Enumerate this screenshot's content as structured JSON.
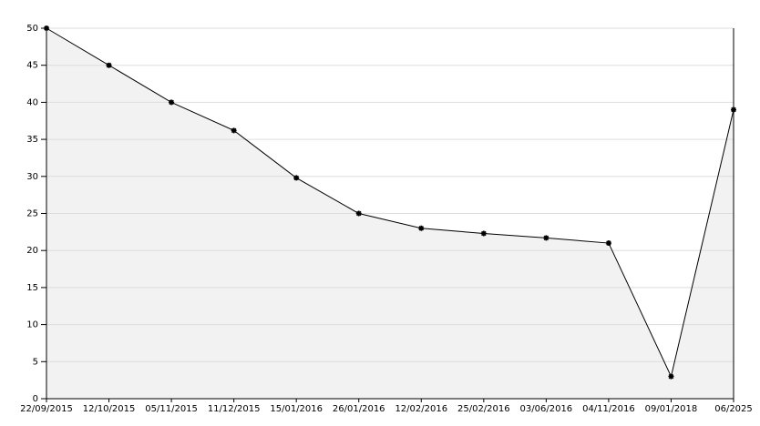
{
  "chart_data": {
    "type": "line",
    "categories": [
      "22/09/2015",
      "12/10/2015",
      "05/11/2015",
      "11/12/2015",
      "15/01/2016",
      "26/01/2016",
      "12/02/2016",
      "25/02/2016",
      "03/06/2016",
      "04/11/2016",
      "09/01/2018",
      "06/2025"
    ],
    "values": [
      50,
      45,
      40,
      36.2,
      29.8,
      25,
      23,
      22.3,
      21.7,
      21,
      3,
      39
    ],
    "color": "#000000",
    "fill": "#f2f2f2",
    "ylim": [
      0,
      50
    ],
    "yticks": [
      0,
      5,
      10,
      15,
      20,
      25,
      30,
      35,
      40,
      45,
      50
    ],
    "grid": true
  }
}
